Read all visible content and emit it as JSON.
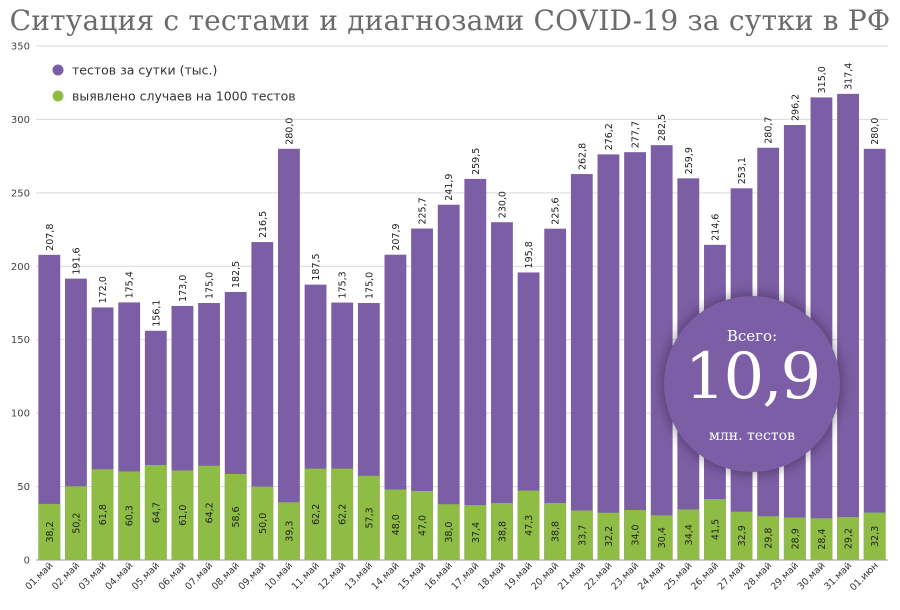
{
  "title": "Ситуация с тестами и диагнозами COVID-19 за сутки в РФ",
  "colors": {
    "tests": "#7c5ea6",
    "cases": "#8fbc45",
    "grid": "#d9d9d9"
  },
  "badge": {
    "top": "Всего:",
    "value": "10,9",
    "bottom": "млн. тестов"
  },
  "chart_data": {
    "type": "bar",
    "stacked": true,
    "title": "Ситуация с тестами и диагнозами COVID-19 за сутки в РФ",
    "ylim": [
      0,
      350
    ],
    "yticks": [
      0,
      50,
      100,
      150,
      200,
      250,
      300,
      350
    ],
    "grid": true,
    "legend_position": "top-left",
    "categories": [
      "01.май",
      "02.май",
      "03.май",
      "04.май",
      "05.май",
      "06.май",
      "07.май",
      "08.май",
      "09.май",
      "10.май",
      "11.май",
      "12.май",
      "13.май",
      "14.май",
      "15.май",
      "16.май",
      "17.май",
      "18.май",
      "19.май",
      "20.май",
      "21.май",
      "22.май",
      "23.май",
      "24.май",
      "25.май",
      "26.май",
      "27.май",
      "28.май",
      "29.май",
      "30.май",
      "31.май",
      "01.июн"
    ],
    "series": [
      {
        "name": "тестов за сутки (тыс.)",
        "values": [
          207.8,
          191.6,
          172.0,
          175.4,
          156.1,
          173.0,
          175.0,
          182.5,
          216.5,
          280.0,
          187.5,
          175.3,
          175.0,
          207.9,
          225.7,
          241.9,
          259.5,
          230.0,
          195.8,
          225.6,
          262.8,
          276.2,
          277.7,
          282.5,
          259.9,
          214.6,
          253.1,
          280.7,
          296.2,
          315.0,
          317.4,
          280.0
        ],
        "labels": [
          "207,8",
          "191,6",
          "172,0",
          "175,4",
          "156,1",
          "173,0",
          "175,0",
          "182,5",
          "216,5",
          "280,0",
          "187,5",
          "175,3",
          "175,0",
          "207,9",
          "225,7",
          "241,9",
          "259,5",
          "230,0",
          "195,8",
          "225,6",
          "262,8",
          "276,2",
          "277,7",
          "282,5",
          "259,9",
          "214,6",
          "253,1",
          "280,7",
          "296,2",
          "315,0",
          "317,4",
          "280,0"
        ]
      },
      {
        "name": "выявлено случаев на 1000 тестов",
        "values": [
          38.2,
          50.2,
          61.8,
          60.3,
          64.7,
          61.0,
          64.2,
          58.6,
          50.0,
          39.3,
          62.2,
          62.2,
          57.3,
          48.0,
          47.0,
          38.0,
          37.4,
          38.8,
          47.3,
          38.8,
          33.7,
          32.2,
          34.0,
          30.4,
          34.4,
          41.5,
          32.9,
          29.8,
          28.9,
          28.4,
          29.2,
          32.3
        ],
        "labels": [
          "38,2",
          "50,2",
          "61,8",
          "60,3",
          "64,7",
          "61,0",
          "64,2",
          "58,6",
          "50,0",
          "39,3",
          "62,2",
          "62,2",
          "57,3",
          "48,0",
          "47,0",
          "38,0",
          "37,4",
          "38,8",
          "47,3",
          "38,8",
          "33,7",
          "32,2",
          "34,0",
          "30,4",
          "34,4",
          "41,5",
          "32,9",
          "29,8",
          "28,9",
          "28,4",
          "29,2",
          "32,3"
        ]
      }
    ]
  }
}
